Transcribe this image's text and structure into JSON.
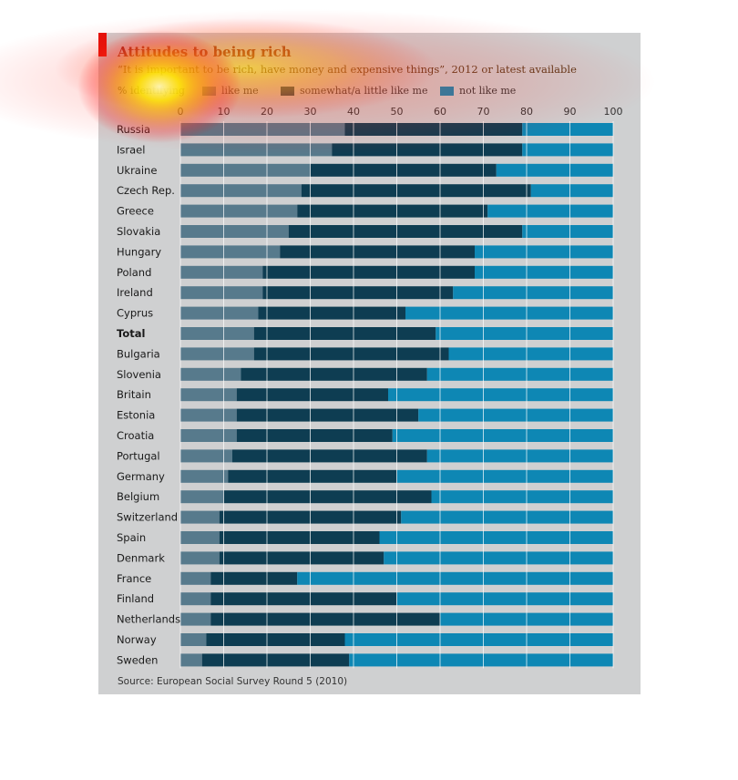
{
  "chart_data": {
    "type": "bar",
    "stacked": true,
    "orientation": "horizontal",
    "title": "Attitudes to being rich",
    "subtitle": "“It is important to be rich, have money and expensive things”, 2012 or latest available",
    "legend_prefix": "% identifying",
    "legend_placement": "top",
    "xlim": [
      0,
      100
    ],
    "xticks": [
      0,
      10,
      20,
      30,
      40,
      50,
      60,
      70,
      80,
      90,
      100
    ],
    "grid": true,
    "categories": [
      "Russia",
      "Israel",
      "Ukraine",
      "Czech Rep.",
      "Greece",
      "Slovakia",
      "Hungary",
      "Poland",
      "Ireland",
      "Cyprus",
      "Total",
      "Bulgaria",
      "Slovenia",
      "Britain",
      "Estonia",
      "Croatia",
      "Portugal",
      "Germany",
      "Belgium",
      "Switzerland",
      "Spain",
      "Denmark",
      "France",
      "Finland",
      "Netherlands",
      "Norway",
      "Sweden"
    ],
    "bold_categories": [
      "Total"
    ],
    "series": [
      {
        "name": "like me",
        "color": "#577a8c",
        "values": [
          38,
          35,
          30,
          28,
          27,
          25,
          23,
          19,
          19,
          18,
          17,
          17,
          14,
          13,
          13,
          13,
          12,
          11,
          10,
          9,
          9,
          9,
          7,
          7,
          7,
          6,
          5
        ]
      },
      {
        "name": "somewhat/a little like me",
        "color": "#0e3d52",
        "values": [
          41,
          44,
          43,
          53,
          44,
          54,
          45,
          49,
          44,
          34,
          42,
          45,
          43,
          35,
          42,
          36,
          45,
          39,
          48,
          42,
          37,
          38,
          20,
          43,
          53,
          32,
          34
        ]
      },
      {
        "name": "not like me",
        "color": "#0e87b4",
        "values": [
          21,
          21,
          27,
          19,
          29,
          21,
          32,
          32,
          37,
          48,
          41,
          38,
          43,
          52,
          45,
          51,
          43,
          50,
          42,
          49,
          54,
          53,
          73,
          50,
          40,
          62,
          61
        ]
      }
    ]
  },
  "source": "Source: European Social Survey Round 5 (2010)",
  "colors": {
    "panel": "#cfd0d1",
    "accent": "#e3120b",
    "grid": "#ffffff"
  }
}
